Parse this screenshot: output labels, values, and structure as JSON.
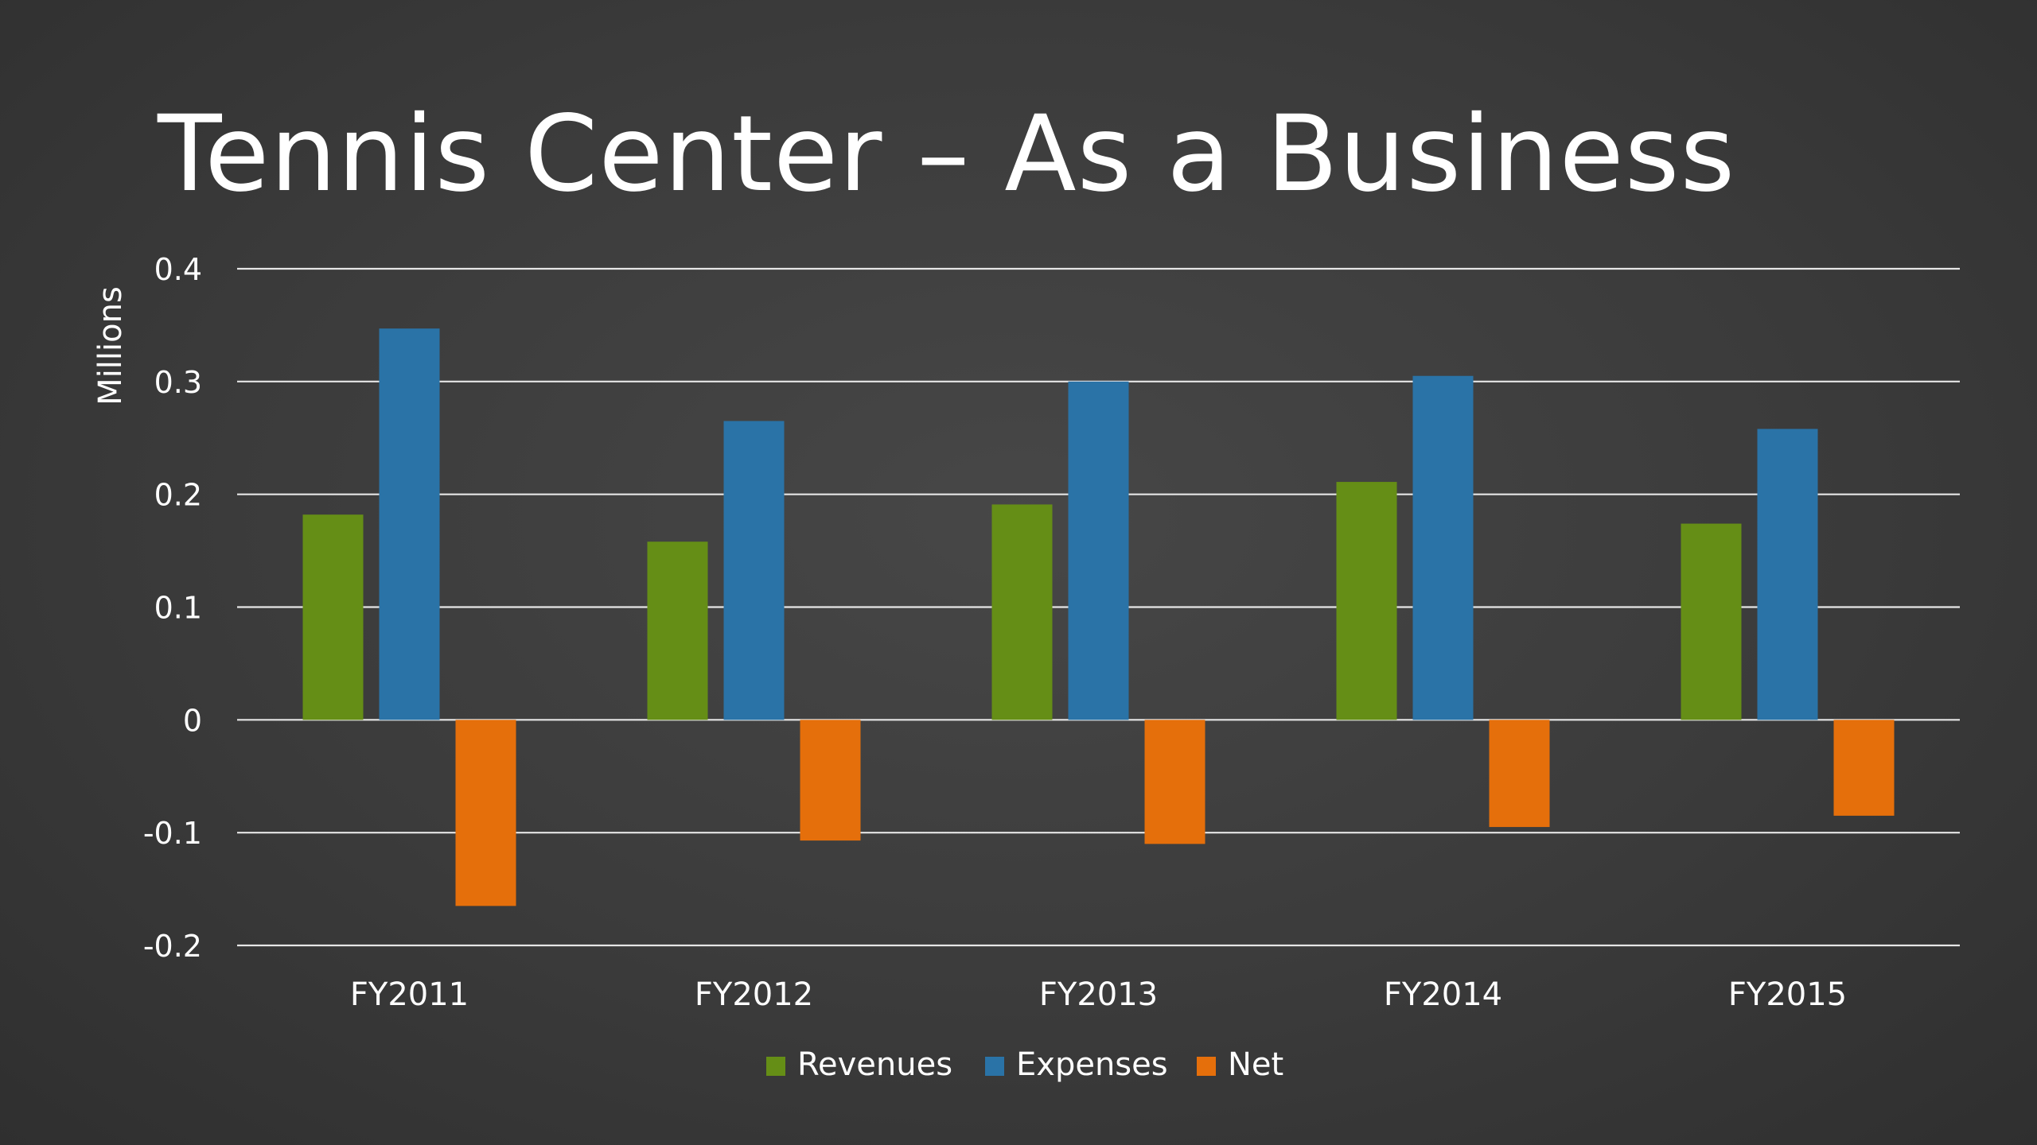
{
  "title": "Tennis Center – As a Business",
  "chart_data": {
    "type": "bar",
    "title": "Tennis Center – As a Business",
    "xlabel": "",
    "ylabel": "Millions",
    "ylim": [
      -0.2,
      0.4
    ],
    "yticks": [
      0.4,
      0.3,
      0.2,
      0.1,
      0,
      -0.1,
      -0.2
    ],
    "ytick_labels": [
      "0.4",
      "0.3",
      "0.2",
      "0.1",
      "0",
      "-0.1",
      "-0.2"
    ],
    "grid": true,
    "legend_position": "bottom",
    "categories": [
      "FY2011",
      "FY2012",
      "FY2013",
      "FY2014",
      "FY2015"
    ],
    "series": [
      {
        "name": "Revenues",
        "color": "#658e16",
        "values": [
          0.182,
          0.158,
          0.191,
          0.211,
          0.174
        ]
      },
      {
        "name": "Expenses",
        "color": "#2a73a7",
        "values": [
          0.347,
          0.265,
          0.3,
          0.305,
          0.258
        ]
      },
      {
        "name": "Net",
        "color": "#e56f0b",
        "values": [
          -0.165,
          -0.107,
          -0.11,
          -0.095,
          -0.085
        ]
      }
    ]
  }
}
